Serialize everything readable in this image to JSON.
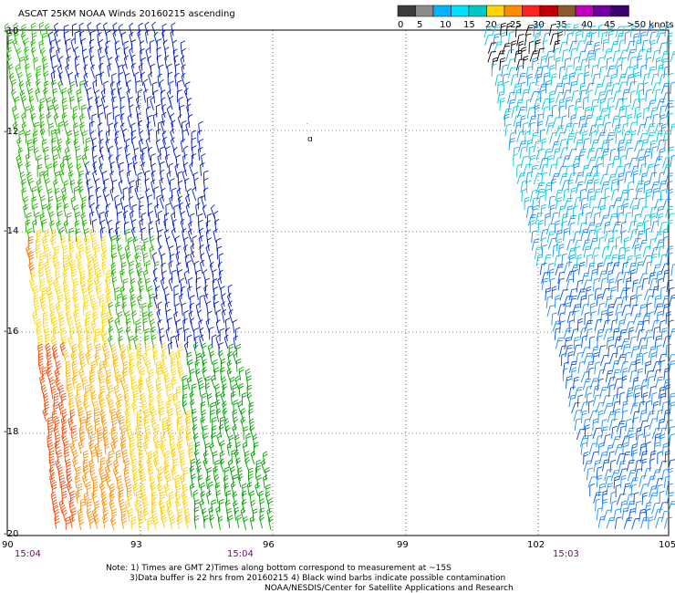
{
  "title": "ASCAT 25KM NOAA Winds 20160215 ascending",
  "legend": {
    "labels": [
      "0",
      "5",
      "10",
      "15",
      "20",
      "25",
      "30",
      "35",
      "40",
      "45",
      ">50 knots"
    ],
    "colors": [
      "#3c3c3c",
      "#8c8c8c",
      "#00b4ff",
      "#00e0ff",
      "#00c8c8",
      "#ffd400",
      "#ff8c00",
      "#ff2020",
      "#c00000",
      "#8b5a2b",
      "#c000c0",
      "#7000a0",
      "#3c0070"
    ]
  },
  "axes": {
    "lon_ticks": [
      "90",
      "93",
      "96",
      "99",
      "102",
      "105"
    ],
    "lat_ticks": [
      "-10",
      "-12",
      "-14",
      "-16",
      "-18",
      "-20"
    ]
  },
  "times": [
    "15:04",
    "15:04",
    "15:03"
  ],
  "notes": [
    "Note: 1) Times are GMT 2)Times along bottom correspond to measurement at ~15S",
    "3)Data buffer is 22 hrs from 20160215 4) Black wind barbs indicate possible contamination",
    "NOAA/NESDIS/Center for Satellite Applications and Research"
  ],
  "map": {
    "region": {
      "lon": [
        90,
        105
      ],
      "lat": [
        -20,
        -10
      ]
    },
    "grid": true,
    "swaths": [
      {
        "name": "west-swath",
        "dominant_speed_knots": "10-30"
      },
      {
        "name": "east-swath",
        "dominant_speed_knots": "10-20"
      }
    ]
  }
}
